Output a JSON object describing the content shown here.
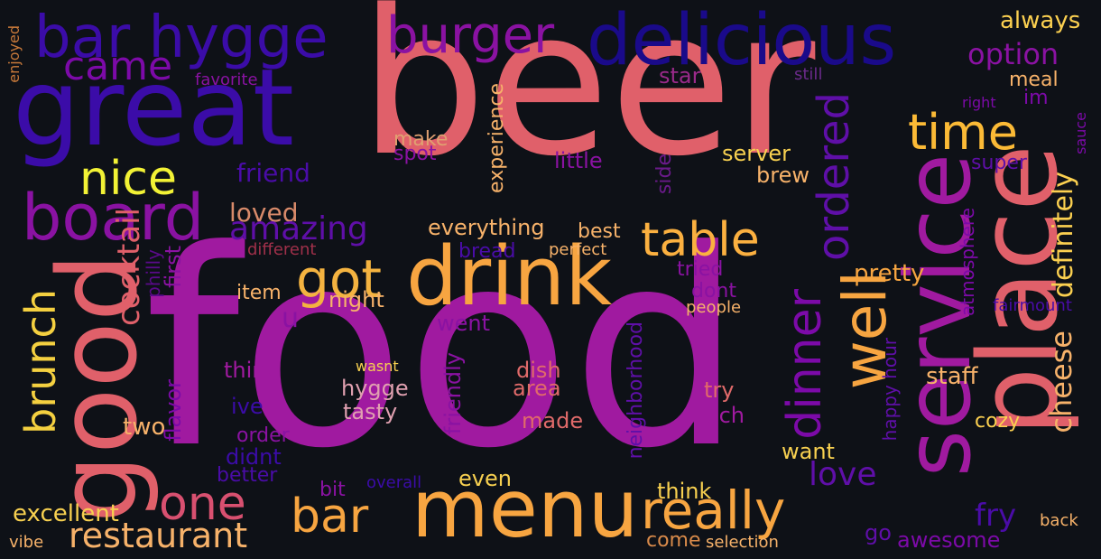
{
  "words": [
    {
      "text": "beer",
      "color": "#e0606a"
    },
    {
      "text": "food",
      "color": "#a01aa0"
    },
    {
      "text": "great",
      "color": "#3b0ca8"
    },
    {
      "text": "delicious",
      "color": "#1a0a8a"
    },
    {
      "text": "bar hygge",
      "color": "#3b0ca8"
    },
    {
      "text": "burger",
      "color": "#8a12a2"
    },
    {
      "text": "place",
      "color": "#e0606a"
    },
    {
      "text": "service",
      "color": "#a01aa0"
    },
    {
      "text": "good",
      "color": "#e0606a"
    },
    {
      "text": "board",
      "color": "#8a12a2"
    },
    {
      "text": "drink",
      "color": "#f7a541"
    },
    {
      "text": "menu",
      "color": "#f7a541"
    },
    {
      "text": "well",
      "color": "#f7a541"
    },
    {
      "text": "ordered",
      "color": "#5f0fa8"
    },
    {
      "text": "dinner",
      "color": "#7c0aa8"
    },
    {
      "text": "time",
      "color": "#fbba36"
    },
    {
      "text": "table",
      "color": "#fbb040"
    },
    {
      "text": "got",
      "color": "#f4b340"
    },
    {
      "text": "nice",
      "color": "#f2f235"
    },
    {
      "text": "came",
      "color": "#7c0aa8"
    },
    {
      "text": "friend",
      "color": "#4a0ca8"
    },
    {
      "text": "one",
      "color": "#d85070"
    },
    {
      "text": "bar",
      "color": "#f7a541"
    },
    {
      "text": "really",
      "color": "#f7a541"
    },
    {
      "text": "brunch",
      "color": "#f4d040"
    },
    {
      "text": "option",
      "color": "#8a12a2"
    },
    {
      "text": "always",
      "color": "#fbd050"
    },
    {
      "text": "meal",
      "color": "#f7b26a"
    },
    {
      "text": "star",
      "color": "#9a2a8a"
    },
    {
      "text": "favorite",
      "color": "#8a12a2"
    },
    {
      "text": "still",
      "color": "#6a2a8a"
    },
    {
      "text": "right",
      "color": "#7c0aa8"
    },
    {
      "text": "im",
      "color": "#7c0aa8"
    },
    {
      "text": "sauce",
      "color": "#7c0aa8"
    },
    {
      "text": "enjoyed",
      "color": "#c97a3a"
    },
    {
      "text": "definitely",
      "color": "#fbd050"
    },
    {
      "text": "super",
      "color": "#5f0fa8"
    },
    {
      "text": "cheese",
      "color": "#f7b26a"
    },
    {
      "text": "atmosphere",
      "color": "#7c0aa8"
    },
    {
      "text": "happy hour",
      "color": "#5f0fa8"
    },
    {
      "text": "staff",
      "color": "#f7b26a"
    },
    {
      "text": "pretty",
      "color": "#f7a541"
    },
    {
      "text": "cozy",
      "color": "#fbd050"
    },
    {
      "text": "love",
      "color": "#5f0fa8"
    },
    {
      "text": "want",
      "color": "#f7d050"
    },
    {
      "text": "fry",
      "color": "#4a0ca8"
    },
    {
      "text": "awesome",
      "color": "#7c0aa8"
    },
    {
      "text": "go",
      "color": "#5f0fa8"
    },
    {
      "text": "back",
      "color": "#f7b26a"
    },
    {
      "text": "selection",
      "color": "#f7b26a"
    },
    {
      "text": "come",
      "color": "#d88a4a"
    },
    {
      "text": "think",
      "color": "#f7d050"
    },
    {
      "text": "fairmount",
      "color": "#4a0ca8"
    },
    {
      "text": "people",
      "color": "#f7b26a"
    },
    {
      "text": "make",
      "color": "#e0a070"
    },
    {
      "text": "spot",
      "color": "#8a12a2"
    },
    {
      "text": "experience",
      "color": "#f7b26a"
    },
    {
      "text": "little",
      "color": "#8a12a2"
    },
    {
      "text": "side",
      "color": "#6a1a8a"
    },
    {
      "text": "server",
      "color": "#f7d050"
    },
    {
      "text": "brew",
      "color": "#f7b26a"
    },
    {
      "text": "loved",
      "color": "#d88a6a"
    },
    {
      "text": "amazing",
      "color": "#5f0fa8"
    },
    {
      "text": "everything",
      "color": "#f7b26a"
    },
    {
      "text": "best",
      "color": "#f7b26a"
    },
    {
      "text": "bread",
      "color": "#4a0ca8"
    },
    {
      "text": "perfect",
      "color": "#f7b26a"
    },
    {
      "text": "tried",
      "color": "#8a12a2"
    },
    {
      "text": "dont",
      "color": "#8a12a2"
    },
    {
      "text": "different",
      "color": "#a0304a"
    },
    {
      "text": "first",
      "color": "#8a12a2"
    },
    {
      "text": "philly",
      "color": "#5a0a8a"
    },
    {
      "text": "cocktail",
      "color": "#e0606a"
    },
    {
      "text": "item",
      "color": "#f7b26a"
    },
    {
      "text": "night",
      "color": "#f7b26a"
    },
    {
      "text": "u",
      "color": "#8a12a2"
    },
    {
      "text": "went",
      "color": "#8a12a2"
    },
    {
      "text": "neighborhood",
      "color": "#5f0fa8"
    },
    {
      "text": "friendly",
      "color": "#8a12a2"
    },
    {
      "text": "thing",
      "color": "#a01aa0"
    },
    {
      "text": "wasnt",
      "color": "#f7d050"
    },
    {
      "text": "hygge",
      "color": "#e0a0b0"
    },
    {
      "text": "tasty",
      "color": "#e0a0b0"
    },
    {
      "text": "dish",
      "color": "#e06a6a"
    },
    {
      "text": "area",
      "color": "#e06a6a"
    },
    {
      "text": "made",
      "color": "#e06a6a"
    },
    {
      "text": "try",
      "color": "#e06a6a"
    },
    {
      "text": "much",
      "color": "#a01aa0"
    },
    {
      "text": "ive",
      "color": "#3b0ca8"
    },
    {
      "text": "two",
      "color": "#f7b26a"
    },
    {
      "text": "flavor",
      "color": "#7c0aa8"
    },
    {
      "text": "order",
      "color": "#8a12a2"
    },
    {
      "text": "didnt",
      "color": "#3b0ca8"
    },
    {
      "text": "better",
      "color": "#4a0ca8"
    },
    {
      "text": "bit",
      "color": "#8a12a2"
    },
    {
      "text": "overall",
      "color": "#3b0ca8"
    },
    {
      "text": "even",
      "color": "#f7d050"
    },
    {
      "text": "excellent",
      "color": "#f7d050"
    },
    {
      "text": "restaurant",
      "color": "#f7b26a"
    },
    {
      "text": "vibe",
      "color": "#f7b26a"
    }
  ]
}
